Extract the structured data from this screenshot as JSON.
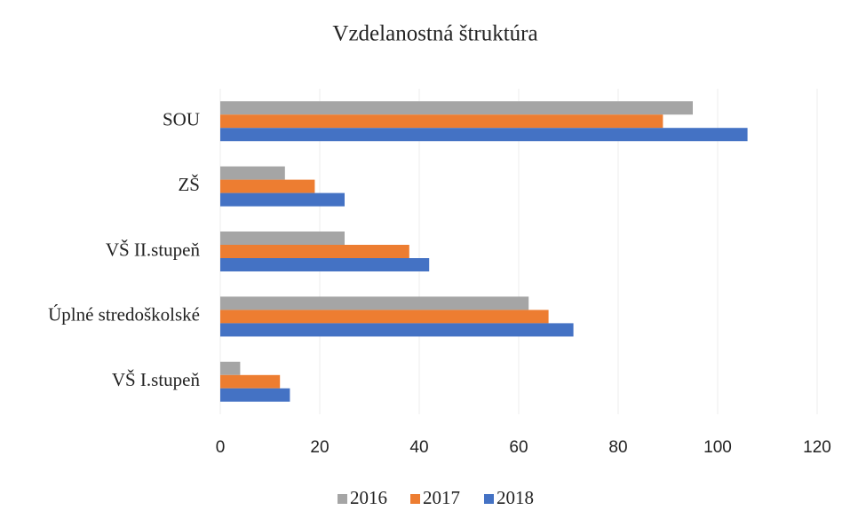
{
  "chart_data": {
    "type": "hbar",
    "title": "Vzdelanostná štruktúra",
    "categories": [
      "SOU",
      "ZŠ",
      "VŠ II.stupeň",
      "Úplné stredoškolské",
      "VŠ I.stupeň"
    ],
    "series": [
      {
        "name": "2016",
        "color": "#a5a5a5",
        "values": [
          95,
          13,
          25,
          62,
          4
        ]
      },
      {
        "name": "2017",
        "color": "#ed7d31",
        "values": [
          89,
          19,
          38,
          66,
          12
        ]
      },
      {
        "name": "2018",
        "color": "#4472c4",
        "values": [
          106,
          25,
          42,
          71,
          14
        ]
      }
    ],
    "xlim": [
      0,
      120
    ],
    "xticks": [
      0,
      20,
      40,
      60,
      80,
      100,
      120
    ],
    "grid": true,
    "legend": "bottom"
  }
}
